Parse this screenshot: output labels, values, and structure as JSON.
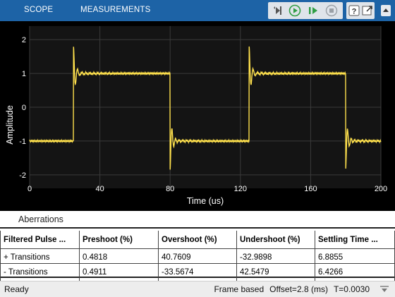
{
  "toolbar": {
    "tabs": [
      {
        "label": "SCOPE"
      },
      {
        "label": "MEASUREMENTS"
      }
    ],
    "buttons": [
      {
        "icon": "step-back-icon"
      },
      {
        "icon": "run-icon"
      },
      {
        "icon": "step-forward-icon"
      },
      {
        "icon": "stop-icon"
      },
      {
        "icon": "help-icon"
      },
      {
        "icon": "undock-icon"
      },
      {
        "icon": "menu-collapse-icon"
      }
    ],
    "colors": {
      "bar": "#1d63a6",
      "accent_green": "#2f9e44"
    }
  },
  "plot": {
    "background": "#000000",
    "trace_color": "#ffe14d",
    "xlabel": "Time (us)",
    "ylabel": "Amplitude",
    "xticks": [
      "0",
      "40",
      "80",
      "120",
      "160",
      "200"
    ],
    "yticks": [
      "2",
      "1",
      "0",
      "-1",
      "-2"
    ]
  },
  "chart_data": {
    "type": "line",
    "xlabel": "Time (us)",
    "ylabel": "Amplitude",
    "xlim": [
      0,
      200
    ],
    "ylim": [
      -2.4,
      2.4
    ],
    "grid": true,
    "series": [
      {
        "color": "#ffe14d",
        "edges": [
          {
            "t": 25,
            "from": -1,
            "to": 1,
            "peak": 1.8
          },
          {
            "t": 80,
            "from": 1,
            "to": -1,
            "peak": -1.85
          },
          {
            "t": 125,
            "from": -1,
            "to": 1,
            "peak": 1.8
          },
          {
            "t": 180,
            "from": 1,
            "to": -1,
            "peak": -1.8
          }
        ],
        "start_level": -1
      }
    ]
  },
  "aberrations": {
    "title": "Aberrations",
    "columns": [
      "Filtered Pulse ...",
      "Preshoot (%)",
      "Overshoot (%)",
      "Undershoot (%)",
      "Settling Time ..."
    ],
    "rows": [
      [
        "+ Transitions",
        "0.4818",
        "40.7609",
        "-32.9898",
        "6.8855"
      ],
      [
        "- Transitions",
        "0.4911",
        "-33.5674",
        "42.5479",
        "6.4266"
      ]
    ]
  },
  "status": {
    "left": "Ready",
    "frame": "Frame based",
    "offset": "Offset=2.8 (ms)",
    "time": "T=0.0030"
  }
}
